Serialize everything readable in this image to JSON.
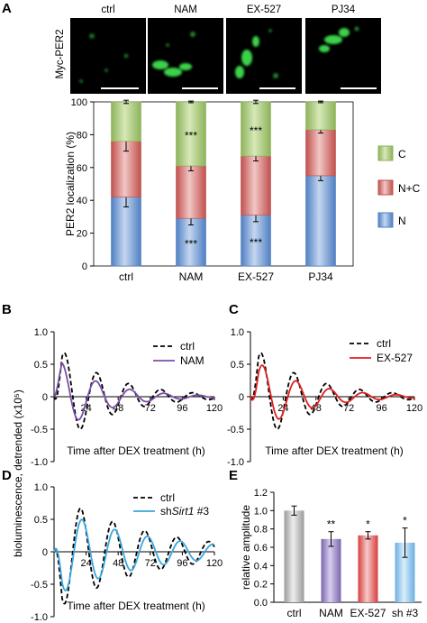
{
  "panels": {
    "A": "A",
    "B": "B",
    "C": "C",
    "D": "D",
    "E": "E"
  },
  "micro": {
    "headers": [
      "ctrl",
      "NAM",
      "EX-527",
      "PJ34"
    ],
    "ylabel": "Myc-PER2"
  },
  "colors": {
    "C": "#8db35a",
    "C_light": "#d6e8b8",
    "NC": "#c0504d",
    "NC_light": "#f2c7c5",
    "N": "#4f7fc2",
    "N_light": "#c4d6f0",
    "ctrl_curve": "#000000",
    "NAM": "#7b4fa8",
    "EX527": "#e02020",
    "shSirt1": "#3aa6dd",
    "bar_ctrl": "#b8b8b8",
    "bar_NAM": "#9b86c8",
    "bar_EX527": "#e86d6d",
    "bar_sh": "#9cc8ec"
  },
  "chart_data": [
    {
      "id": "A",
      "type": "bar",
      "stacked": true,
      "categories": [
        "ctrl",
        "NAM",
        "EX-527",
        "PJ34"
      ],
      "series": [
        {
          "name": "N",
          "values": [
            42,
            29,
            31,
            55
          ],
          "errors": [
            6,
            4,
            4,
            3
          ],
          "color_key": "N"
        },
        {
          "name": "N+C",
          "values": [
            34,
            32,
            36,
            28
          ],
          "errors": [
            6,
            3,
            3,
            2
          ],
          "color_key": "NC"
        },
        {
          "name": "C",
          "values": [
            24,
            39,
            33,
            17
          ],
          "errors": [
            1,
            0.5,
            1,
            0.5
          ],
          "color_key": "C"
        }
      ],
      "annotations": [
        {
          "category": "NAM",
          "series": "C",
          "text": "***"
        },
        {
          "category": "NAM",
          "series": "N",
          "text": "***"
        },
        {
          "category": "EX-527",
          "series": "C",
          "text": "***"
        },
        {
          "category": "EX-527",
          "series": "N",
          "text": "***"
        }
      ],
      "ylabel": "PER2 localization (%)",
      "ylim": [
        0,
        100
      ],
      "yticks": [
        0,
        20,
        40,
        60,
        80,
        100
      ],
      "legend": [
        "C",
        "N+C",
        "N"
      ],
      "legend_position": "right"
    },
    {
      "id": "B",
      "type": "line",
      "xlim": [
        0,
        120
      ],
      "ylim": [
        -1.0,
        1.0
      ],
      "xticks": [
        24,
        48,
        72,
        96,
        120
      ],
      "yticks": [
        -1.0,
        -0.5,
        0,
        0.5,
        1.0
      ],
      "xlabel": "Time after DEX treatment (h)",
      "series": [
        {
          "name": "ctrl",
          "style": "dashed",
          "color_key": "ctrl_curve",
          "amp": 0.82,
          "period": 24,
          "phase": 8,
          "decay": 0.025
        },
        {
          "name": "NAM",
          "style": "solid",
          "color_key": "NAM",
          "amp": 0.62,
          "period": 25.5,
          "phase": 6,
          "decay": 0.03
        }
      ],
      "legend_position": "top-right"
    },
    {
      "id": "C",
      "type": "line",
      "xlim": [
        0,
        120
      ],
      "ylim": [
        -1.0,
        1.0
      ],
      "xticks": [
        24,
        48,
        72,
        96,
        120
      ],
      "yticks": [
        -1.0,
        -0.5,
        0,
        0.5,
        1.0
      ],
      "xlabel": "Time after DEX treatment (h)",
      "series": [
        {
          "name": "ctrl",
          "style": "dashed",
          "color_key": "ctrl_curve",
          "amp": 0.82,
          "period": 24,
          "phase": 8,
          "decay": 0.025
        },
        {
          "name": "EX-527",
          "style": "solid",
          "color_key": "EX527",
          "amp": 0.62,
          "period": 24.5,
          "phase": 9,
          "decay": 0.028
        }
      ],
      "legend_position": "top-right"
    },
    {
      "id": "D",
      "type": "line",
      "xlim": [
        0,
        120
      ],
      "ylim": [
        -1.0,
        1.0
      ],
      "xticks": [
        24,
        48,
        72,
        96,
        120
      ],
      "yticks": [
        -1.0,
        -0.5,
        0,
        0.5,
        1.0
      ],
      "xlabel": "Time after DEX treatment (h)",
      "ylabel": "bioluminescence, detrended (x10⁵)",
      "series": [
        {
          "name": "ctrl",
          "style": "dashed",
          "color_key": "ctrl_curve",
          "amp": 0.9,
          "period": 24,
          "phase": 20,
          "decay": 0.015
        },
        {
          "name": "shSirt1 #3",
          "style": "solid",
          "color_key": "shSirt1",
          "amp": 0.68,
          "period": 24.5,
          "phase": 21,
          "decay": 0.015
        }
      ],
      "legend_position": "top-right"
    },
    {
      "id": "E",
      "type": "bar",
      "categories": [
        "ctrl",
        "NAM",
        "EX-527",
        "sh #3"
      ],
      "values": [
        1.0,
        0.69,
        0.73,
        0.65
      ],
      "errors": [
        0.05,
        0.08,
        0.04,
        0.16
      ],
      "significance": [
        "",
        "**",
        "*",
        "*"
      ],
      "color_keys": [
        "bar_ctrl",
        "bar_NAM",
        "bar_EX527",
        "bar_sh"
      ],
      "ylabel": "relative amplitude",
      "ylim": [
        0,
        1.2
      ],
      "yticks": [
        0.0,
        0.2,
        0.4,
        0.6,
        0.8,
        1.0,
        1.2
      ]
    }
  ],
  "legend_text": {
    "B": [
      "ctrl",
      "NAM"
    ],
    "C": [
      "ctrl",
      "EX-527"
    ],
    "D_ctrl": "ctrl",
    "D_sh_prefix": "sh",
    "D_sh_italic": "Sirt1",
    "D_sh_suffix": " #3"
  },
  "scale_text": {
    "A": "",
    "B": ""
  }
}
